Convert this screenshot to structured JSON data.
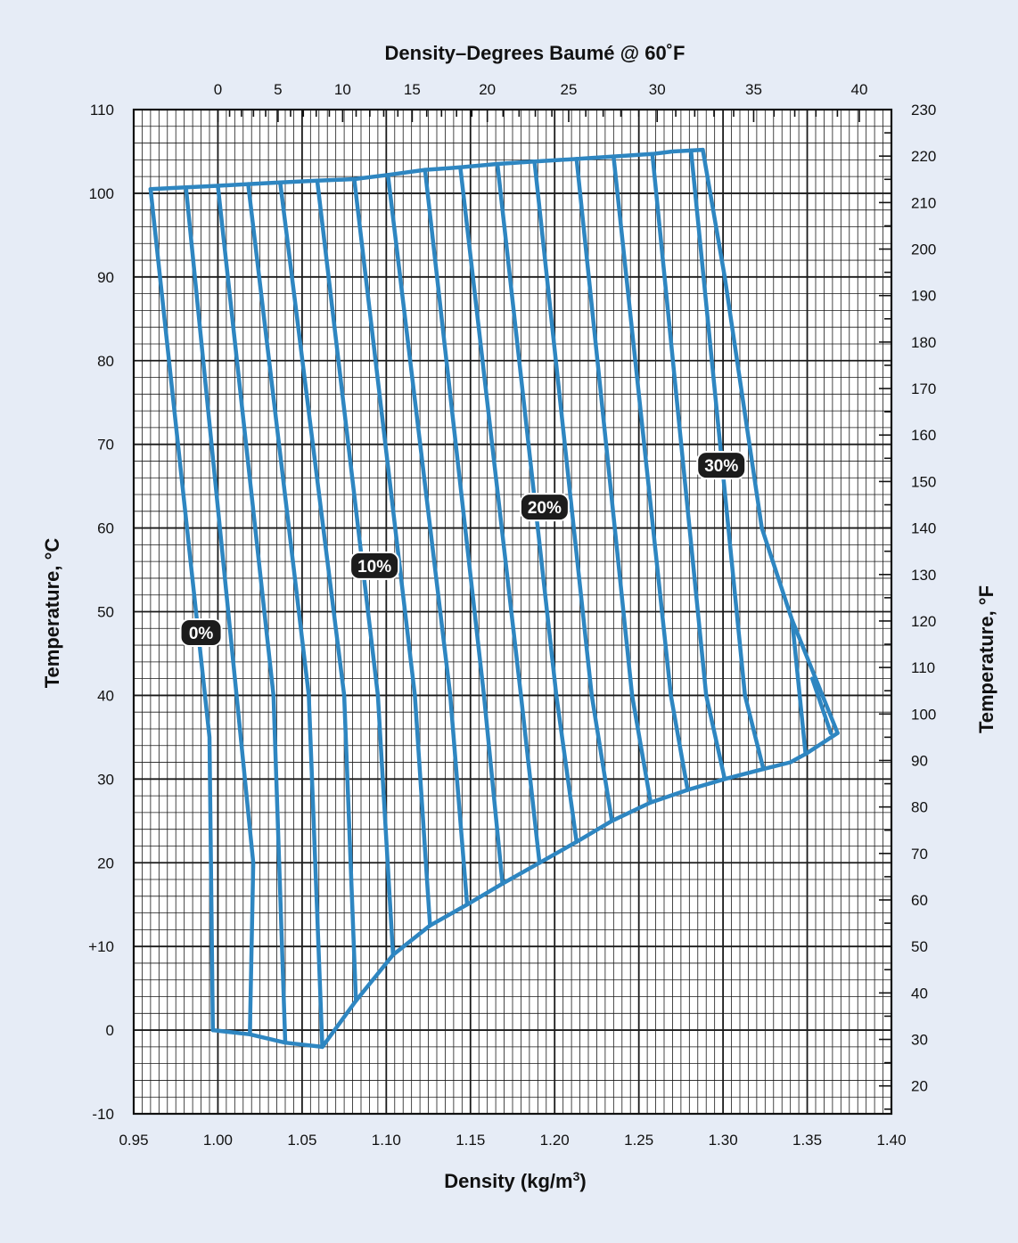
{
  "chart_data": {
    "type": "line",
    "title": "Density–Degrees Baumé @ 60˚F",
    "xlabel": "Density (kg/m³)",
    "ylabel": "Temperature, °C",
    "ylabel_right": "Temperature, °F",
    "xlim": [
      0.95,
      1.4
    ],
    "ylim": [
      -10,
      110
    ],
    "y2lim": [
      14,
      230
    ],
    "grid": true,
    "x_ticks": [
      "0.95",
      "1.00",
      "1.05",
      "1.10",
      "1.15",
      "1.20",
      "1.25",
      "1.30",
      "1.35",
      "1.40"
    ],
    "y_ticks": [
      "-10",
      "0",
      "+10",
      "20",
      "30",
      "40",
      "50",
      "60",
      "70",
      "80",
      "90",
      "100",
      "110"
    ],
    "y2_ticks": [
      "20",
      "30",
      "40",
      "50",
      "60",
      "70",
      "80",
      "90",
      "100",
      "110",
      "120",
      "130",
      "140",
      "150",
      "160",
      "170",
      "180",
      "190",
      "200",
      "210",
      "220",
      "230"
    ],
    "top_axis": {
      "label": "Density–Degrees Baumé @ 60˚F",
      "ticks": [
        {
          "label": "0",
          "baume": 0
        },
        {
          "label": "5",
          "baume": 5
        },
        {
          "label": "10",
          "baume": 10
        },
        {
          "label": "15",
          "baume": 15
        },
        {
          "label": "20",
          "baume": 20
        },
        {
          "label": "25",
          "baume": 25
        },
        {
          "label": "30",
          "baume": 30
        },
        {
          "label": "35",
          "baume": 35
        },
        {
          "label": "40",
          "baume": 40
        }
      ]
    },
    "series_color": "#2e86c1",
    "series": [
      {
        "x": [
          0.96,
          0.995,
          0.997
        ],
        "y": [
          100.5,
          35,
          0
        ]
      },
      {
        "x": [
          0.981,
          1.021,
          1.019
        ],
        "y": [
          100.7,
          20,
          -0.5
        ]
      },
      {
        "x": [
          1.0,
          1.033,
          1.04
        ],
        "y": [
          100.9,
          40,
          -1.5
        ]
      },
      {
        "x": [
          1.018,
          1.054,
          1.062
        ],
        "y": [
          101.1,
          40,
          -2
        ]
      },
      {
        "x": [
          1.037,
          1.075,
          1.082
        ],
        "y": [
          101.3,
          40,
          3.5
        ]
      },
      {
        "x": [
          1.059,
          1.095,
          1.104
        ],
        "y": [
          101.5,
          40,
          9
        ]
      },
      {
        "x": [
          1.081,
          1.117,
          1.126
        ],
        "y": [
          101.7,
          40,
          12.5
        ]
      },
      {
        "x": [
          1.101,
          1.138,
          1.148
        ],
        "y": [
          102.2,
          40,
          15
        ]
      },
      {
        "x": [
          1.123,
          1.158,
          1.169
        ],
        "y": [
          102.8,
          40,
          17.5
        ]
      },
      {
        "x": [
          1.144,
          1.18,
          1.191
        ],
        "y": [
          103.1,
          40,
          20
        ]
      },
      {
        "x": [
          1.166,
          1.201,
          1.213
        ],
        "y": [
          103.5,
          40,
          22.5
        ]
      },
      {
        "x": [
          1.188,
          1.222,
          1.234
        ],
        "y": [
          103.8,
          40,
          25
        ]
      },
      {
        "x": [
          1.213,
          1.246,
          1.257
        ],
        "y": [
          104.1,
          40,
          27.2
        ]
      },
      {
        "x": [
          1.235,
          1.269,
          1.279
        ],
        "y": [
          104.4,
          40,
          28.7
        ]
      },
      {
        "x": [
          1.258,
          1.29,
          1.301
        ],
        "y": [
          104.7,
          40,
          30
        ]
      },
      {
        "x": [
          1.281,
          1.313,
          1.324
        ],
        "y": [
          105.1,
          40,
          31.2
        ]
      },
      {
        "x": [
          1.341,
          1.349
        ],
        "y": [
          49,
          33
        ]
      },
      {
        "x": [
          1.353,
          1.364
        ],
        "y": [
          42,
          35.5
        ]
      },
      {
        "x": [
          0.96,
          0.981,
          1.0,
          1.018,
          1.037,
          1.059,
          1.081,
          1.101,
          1.123,
          1.144,
          1.166,
          1.188,
          1.213,
          1.235,
          1.258,
          1.27,
          1.288
        ],
        "y": [
          100.5,
          100.7,
          100.9,
          101.1,
          101.3,
          101.5,
          101.7,
          102.2,
          102.8,
          103.1,
          103.5,
          103.8,
          104.1,
          104.4,
          104.7,
          105.0,
          105.2
        ]
      },
      {
        "x": [
          1.062,
          1.082,
          1.104,
          1.126,
          1.148,
          1.169,
          1.191,
          1.213,
          1.234,
          1.257,
          1.279,
          1.301,
          1.324,
          1.34,
          1.349,
          1.368
        ],
        "y": [
          -2,
          3.5,
          9,
          12.5,
          15,
          17.5,
          20,
          22.5,
          25,
          27.2,
          28.7,
          30,
          31.2,
          32,
          33,
          35.5
        ]
      },
      {
        "x": [
          0.997,
          1.019,
          1.04,
          1.062
        ],
        "y": [
          0,
          -0.5,
          -1.5,
          -2
        ]
      },
      {
        "x": [
          1.288,
          1.301,
          1.323,
          1.341,
          1.368
        ],
        "y": [
          105.2,
          90,
          60,
          49,
          35.5
        ]
      }
    ],
    "annotations": [
      {
        "text": "0%",
        "x": 0.99,
        "y": 47.5
      },
      {
        "text": "10%",
        "x": 1.093,
        "y": 55.5
      },
      {
        "text": "20%",
        "x": 1.194,
        "y": 62.5
      },
      {
        "text": "30%",
        "x": 1.299,
        "y": 67.5
      }
    ]
  }
}
